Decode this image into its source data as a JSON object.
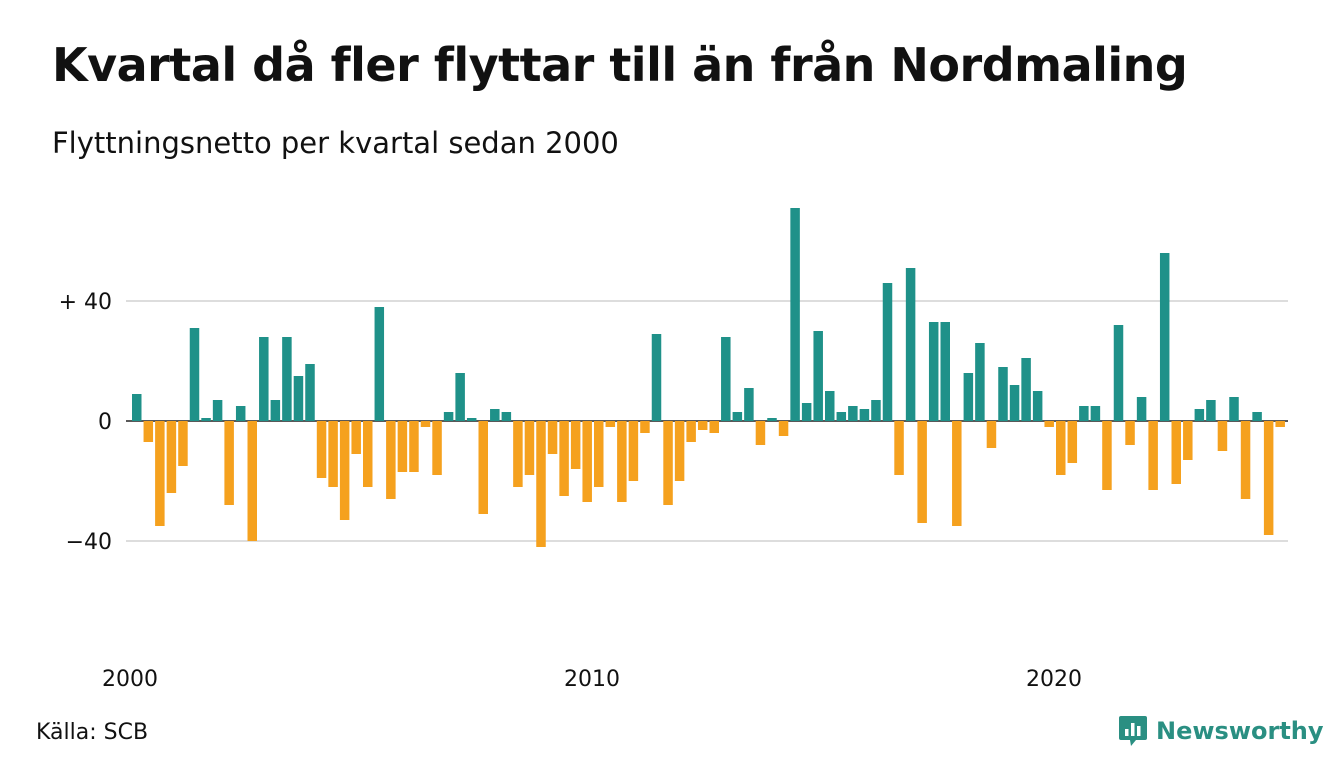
{
  "title": "Kvartal då fler flyttar till än från Nordmaling",
  "subtitle": "Flyttningsnetto per kvartal sedan 2000",
  "source": "Källa: SCB",
  "brand": "Newsworthy",
  "colors": {
    "positive": "#1f9189",
    "negative": "#f5a11e",
    "grid": "#dddddd",
    "brand": "#2a8f82"
  },
  "chart_data": {
    "type": "bar",
    "x_start": "2000 Q1",
    "ylim": [
      -70,
      70
    ],
    "y_ticks": [
      {
        "value": 40,
        "label": "+ 40"
      },
      {
        "value": 0,
        "label": "0"
      },
      {
        "value": -40,
        "label": "−40"
      }
    ],
    "x_ticks": [
      {
        "year": 2000,
        "label": "2000"
      },
      {
        "year": 2010,
        "label": "2010"
      },
      {
        "year": 2020,
        "label": "2020"
      }
    ],
    "values": [
      9,
      -7,
      -35,
      -24,
      -15,
      31,
      1,
      7,
      -28,
      5,
      -40,
      28,
      7,
      28,
      15,
      19,
      -19,
      -22,
      -33,
      -11,
      -22,
      38,
      -26,
      -17,
      -17,
      -2,
      -18,
      3,
      16,
      1,
      -31,
      4,
      3,
      -22,
      -18,
      -42,
      -11,
      -25,
      -16,
      -27,
      -22,
      -2,
      -27,
      -20,
      -4,
      29,
      -28,
      -20,
      -7,
      -3,
      -4,
      28,
      3,
      11,
      -8,
      1,
      -5,
      71,
      6,
      30,
      10,
      3,
      5,
      4,
      7,
      46,
      -18,
      51,
      -34,
      33,
      33,
      -35,
      16,
      26,
      -9,
      18,
      12,
      21,
      10,
      -2,
      -18,
      -14,
      5,
      5,
      -23,
      32,
      -8,
      8,
      -23,
      56,
      -21,
      -13,
      4,
      7,
      -10,
      8,
      -26,
      3,
      -38,
      -2
    ]
  }
}
